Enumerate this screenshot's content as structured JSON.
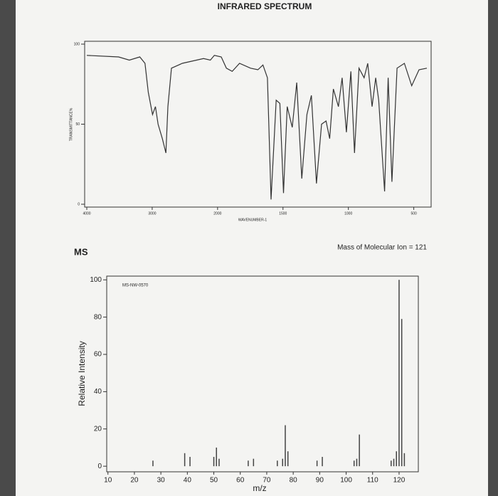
{
  "chart_data": [
    {
      "type": "line",
      "title": "INFRARED SPECTRUM",
      "ylabel": "TRANSMITTANCE%",
      "xlabel": "WAVENUMBER-1",
      "x": [
        4000,
        3514,
        3350,
        3190,
        3110,
        3060,
        2995,
        2950,
        2910,
        2845,
        2790,
        2760,
        2705,
        2540,
        2215,
        2110,
        2050,
        1972,
        1933,
        1888,
        1832,
        1748,
        1692,
        1653,
        1619,
        1591,
        1552,
        1524,
        1496,
        1468,
        1429,
        1395,
        1356,
        1317,
        1283,
        1244,
        1205,
        1171,
        1143,
        1115,
        1076,
        1048,
        1015,
        981,
        953,
        919,
        880,
        852,
        819,
        791,
        768,
        723,
        696,
        667,
        628,
        572,
        516,
        460,
        400
      ],
      "values": [
        93,
        92,
        90,
        92,
        88,
        70,
        56,
        61,
        50,
        41,
        32,
        61,
        85,
        88,
        91,
        90,
        93,
        92,
        85,
        83,
        88,
        85,
        84,
        87,
        79,
        3,
        65,
        63,
        7,
        61,
        48,
        76,
        16,
        56,
        68,
        13,
        50,
        52,
        41,
        72,
        61,
        79,
        45,
        83,
        32,
        85,
        79,
        88,
        61,
        79,
        65,
        8,
        79,
        14,
        85,
        88,
        74,
        84,
        85
      ],
      "color": "#333333",
      "xlim": [
        4000,
        400
      ],
      "ylim": [
        0,
        100
      ],
      "xticks": [
        4000,
        3000,
        2000,
        1500,
        1000,
        500
      ],
      "yticks": [
        0,
        50,
        100
      ],
      "scale_break": 2000
    },
    {
      "type": "bar",
      "title": "MS",
      "subtitle": "Mass of Molecular Ion = 121",
      "annotation": "MS-NW-0570",
      "ylabel": "Relative Intensity",
      "xlabel": "m/z",
      "x": [
        27,
        39,
        41,
        50,
        51,
        52,
        63,
        65,
        74,
        76,
        77,
        78,
        89,
        91,
        103,
        104,
        105,
        117,
        118,
        119,
        120,
        121,
        122
      ],
      "values": [
        3,
        7,
        5,
        5,
        10,
        4,
        3,
        4,
        3,
        4,
        22,
        8,
        3,
        5,
        3,
        4,
        17,
        3,
        4,
        8,
        100,
        79,
        7
      ],
      "color": "#444444",
      "xlim": [
        9,
        127
      ],
      "ylim": [
        -3,
        102
      ],
      "xticks": [
        10,
        20,
        30,
        40,
        50,
        60,
        70,
        80,
        90,
        100,
        110,
        120
      ],
      "yticks": [
        0,
        20,
        40,
        60,
        80,
        100
      ]
    }
  ]
}
